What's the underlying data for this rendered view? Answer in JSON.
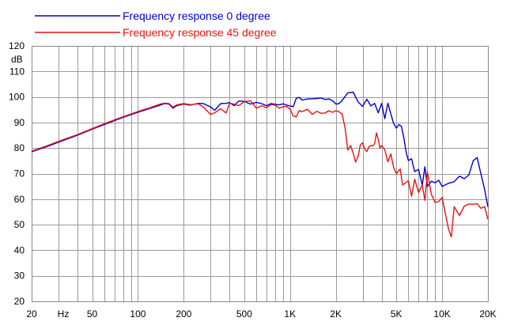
{
  "chart_data": {
    "type": "line",
    "title": "",
    "xlabel": "",
    "ylabel": "",
    "y_unit": "dB",
    "x_unit": "Hz",
    "x_scale": "log",
    "xlim": [
      20,
      20000
    ],
    "ylim": [
      20,
      120
    ],
    "grid": true,
    "legend_position": "top-left",
    "x_tick_labels": [
      {
        "value": 20,
        "label": "20"
      },
      {
        "value": 50,
        "label": "50"
      },
      {
        "value": 100,
        "label": "100"
      },
      {
        "value": 200,
        "label": "200"
      },
      {
        "value": 500,
        "label": "500"
      },
      {
        "value": 1000,
        "label": "1K"
      },
      {
        "value": 2000,
        "label": "2K"
      },
      {
        "value": 5000,
        "label": "5K"
      },
      {
        "value": 10000,
        "label": "10K"
      },
      {
        "value": 20000,
        "label": "20K"
      }
    ],
    "y_ticks": [
      20,
      30,
      40,
      50,
      60,
      70,
      80,
      90,
      100,
      110,
      120
    ],
    "series": [
      {
        "name": "Frequency response 0 degree",
        "color": "#0000cc",
        "x": [
          20,
          25,
          30,
          40,
          50,
          60,
          70,
          80,
          100,
          120,
          140,
          150,
          160,
          170,
          180,
          200,
          220,
          250,
          270,
          300,
          320,
          350,
          380,
          400,
          430,
          460,
          500,
          550,
          600,
          650,
          700,
          750,
          800,
          850,
          900,
          950,
          1000,
          1050,
          1100,
          1150,
          1200,
          1300,
          1400,
          1500,
          1600,
          1700,
          1800,
          1900,
          2000,
          2100,
          2200,
          2400,
          2600,
          2800,
          3000,
          3200,
          3400,
          3600,
          3800,
          4000,
          4200,
          4400,
          4600,
          4800,
          5000,
          5200,
          5400,
          5600,
          5800,
          6000,
          6300,
          6600,
          7000,
          7400,
          7700,
          8000,
          8500,
          9000,
          9500,
          10000,
          11000,
          12000,
          13000,
          14000,
          15000,
          16000,
          17000,
          18000,
          19000,
          20000
        ],
        "y": [
          78.5,
          80.5,
          82.3,
          85,
          87.4,
          89.2,
          90.7,
          92,
          94,
          95.5,
          96.8,
          97.4,
          97.2,
          95.6,
          96.6,
          97.2,
          96.8,
          97.5,
          97.4,
          96.1,
          94.8,
          97.4,
          97.5,
          97.8,
          96.6,
          98.4,
          98.3,
          97.2,
          97.9,
          97.4,
          96.6,
          97.4,
          97.1,
          96.9,
          97.3,
          96.8,
          96.5,
          96.2,
          99.5,
          99.8,
          98.8,
          99.2,
          99.3,
          99.4,
          99.6,
          99,
          99.2,
          98.6,
          97.2,
          97.4,
          98.6,
          101.6,
          101.9,
          98.1,
          96.3,
          99.1,
          96.5,
          97.5,
          93.8,
          97.5,
          91.5,
          97.6,
          93.4,
          89.6,
          87.8,
          89.2,
          88.5,
          84,
          78.4,
          75.1,
          75.8,
          70.8,
          71.6,
          65.5,
          72.7,
          65,
          67,
          66.4,
          67.4,
          65,
          66.2,
          66.8,
          69,
          68,
          69.5,
          75,
          76.3,
          69.8,
          64,
          57
        ]
      },
      {
        "name": "Frequency response 45 degree",
        "color": "#ee1111",
        "x": [
          20,
          25,
          30,
          40,
          50,
          60,
          70,
          80,
          100,
          120,
          140,
          150,
          160,
          170,
          180,
          200,
          220,
          250,
          270,
          300,
          320,
          350,
          380,
          400,
          430,
          460,
          500,
          550,
          600,
          650,
          700,
          750,
          800,
          850,
          900,
          950,
          1000,
          1050,
          1100,
          1150,
          1200,
          1300,
          1400,
          1500,
          1600,
          1700,
          1800,
          1900,
          2000,
          2100,
          2200,
          2300,
          2400,
          2500,
          2600,
          2700,
          2800,
          2900,
          3000,
          3100,
          3200,
          3300,
          3400,
          3500,
          3600,
          3700,
          3800,
          3900,
          4000,
          4200,
          4400,
          4600,
          4800,
          5000,
          5300,
          5500,
          6000,
          6300,
          6600,
          7000,
          7400,
          7700,
          8000,
          8500,
          9000,
          9500,
          10000,
          11000,
          11500,
          12000,
          13000,
          14000,
          15000,
          16000,
          17000,
          18000,
          19000,
          20000
        ],
        "y": [
          78.8,
          80.8,
          82.6,
          85.3,
          87.6,
          89.5,
          91,
          92.3,
          94.3,
          95.8,
          97.2,
          97.6,
          97.4,
          96,
          96.9,
          97.4,
          97,
          97.3,
          96,
          93.2,
          93.8,
          95.4,
          93.7,
          97.5,
          97.2,
          96.6,
          98.2,
          98.5,
          95.6,
          96.6,
          95.8,
          97,
          96.8,
          95.6,
          96.2,
          96.3,
          95.2,
          92.6,
          92.2,
          94.7,
          94.2,
          95.2,
          93.2,
          94.4,
          93.6,
          93.7,
          94.6,
          94,
          94.6,
          94.2,
          93.3,
          88,
          79.2,
          81,
          78,
          74.5,
          76.6,
          81.3,
          82,
          79.6,
          78.6,
          80.5,
          81,
          80.8,
          81.8,
          85.9,
          83.4,
          80,
          81,
          79.3,
          74.6,
          77.7,
          72.4,
          70,
          71.8,
          65.5,
          67.2,
          61.1,
          67.8,
          62.6,
          65.5,
          59.5,
          70.6,
          61.9,
          58.7,
          59,
          60.7,
          48.4,
          45.2,
          57,
          53.6,
          57.3,
          58.1,
          58,
          58.2,
          56.4,
          57.1,
          52.1
        ]
      }
    ]
  }
}
